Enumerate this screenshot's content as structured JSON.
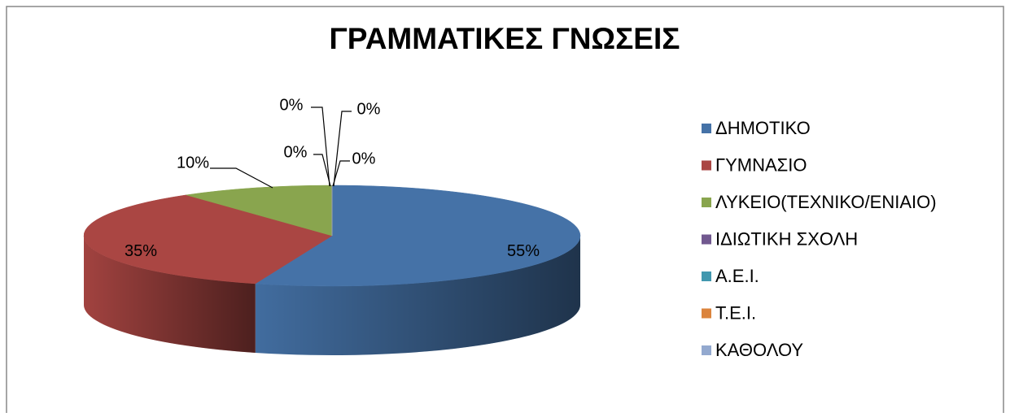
{
  "chart_data": {
    "type": "pie",
    "title": "ΓΡΑΜΜΑΤΙΚΕΣ ΓΝΩΣΕΙΣ",
    "categories": [
      "ΔΗΜΟΤΙΚΟ",
      "ΓΥΜΝΑΣΙΟ",
      "ΛΥΚΕΙΟ(ΤΕΧΝΙΚΟ/ΕΝΙΑΙΟ)",
      "ΙΔΙΩΤΙΚΗ ΣΧΟΛΗ",
      "Α.Ε.Ι.",
      "Τ.Ε.Ι.",
      "ΚΑΘΟΛΟΥ"
    ],
    "values": [
      55,
      35,
      10,
      0,
      0,
      0,
      0
    ],
    "value_labels": [
      "55%",
      "35%",
      "10%",
      "0%",
      "0%",
      "0%",
      "0%"
    ],
    "colors": [
      "#4572a7",
      "#aa4643",
      "#89a54e",
      "#71588f",
      "#4198af",
      "#db843d",
      "#93a9cf"
    ],
    "legend": "right"
  }
}
